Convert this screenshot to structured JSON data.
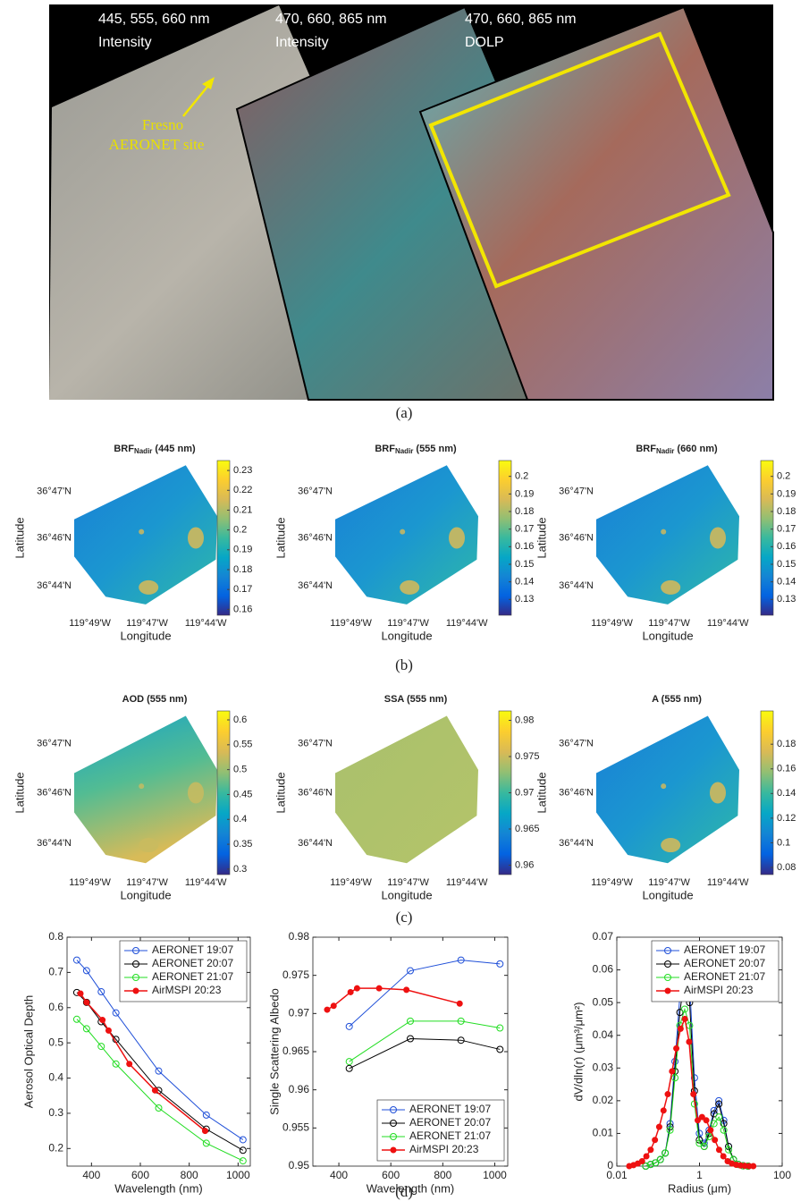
{
  "panel_labels": [
    "(a)",
    "(b)",
    "(c)",
    "(d)"
  ],
  "image_labels": [
    [
      "445, 555, 660 nm",
      "Intensity"
    ],
    [
      "470, 660, 865 nm",
      "Intensity"
    ],
    [
      "470, 660, 865 nm",
      "DOLP"
    ]
  ],
  "site_label": [
    "Fresno",
    "AERONET site"
  ],
  "chart_data": [
    {
      "type": "map",
      "title": "BRF",
      "title_sub": "Nadir",
      "title_suffix": "(445 nm)",
      "xlabel": "Longitude",
      "ylabel": "Latitude",
      "lat_labels": [
        "36°47'N",
        "36°46'N",
        "36°44'N"
      ],
      "lon_labels": [
        "119°49'W",
        "119°47'W",
        "119°44'W"
      ],
      "colormap": "parula",
      "clim": [
        0.157,
        0.235
      ],
      "cticks": [
        0.16,
        0.17,
        0.18,
        0.19,
        0.2,
        0.21,
        0.22,
        0.23
      ]
    },
    {
      "type": "map",
      "title": "BRF",
      "title_sub": "Nadir",
      "title_suffix": "(555 nm)",
      "xlabel": "Longitude",
      "ylabel": "Latitude",
      "lat_labels": [
        "36°47'N",
        "36°46'N",
        "36°44'N"
      ],
      "lon_labels": [
        "119°49'W",
        "119°47'W",
        "119°44'W"
      ],
      "colormap": "parula",
      "clim": [
        0.121,
        0.209
      ],
      "cticks": [
        0.13,
        0.14,
        0.15,
        0.16,
        0.17,
        0.18,
        0.19,
        0.2
      ]
    },
    {
      "type": "map",
      "title": "BRF",
      "title_sub": "Nadir",
      "title_suffix": "(660 nm)",
      "xlabel": "Longitude",
      "ylabel": "Latitude",
      "lat_labels": [
        "36°47'N",
        "36°46'N",
        "36°44'N"
      ],
      "lon_labels": [
        "119°49'W",
        "119°47'W",
        "119°44'W"
      ],
      "colormap": "parula",
      "clim": [
        0.121,
        0.209
      ],
      "cticks": [
        0.13,
        0.14,
        0.15,
        0.16,
        0.17,
        0.18,
        0.19,
        0.2
      ]
    },
    {
      "type": "map",
      "title": "AOD (555 nm)",
      "xlabel": "Longitude",
      "ylabel": "Latitude",
      "lat_labels": [
        "36°47'N",
        "36°46'N",
        "36°44'N"
      ],
      "lon_labels": [
        "119°49'W",
        "119°47'W",
        "119°44'W"
      ],
      "colormap": "parula",
      "clim": [
        0.289,
        0.618
      ],
      "cticks": [
        0.3,
        0.35,
        0.4,
        0.45,
        0.5,
        0.55,
        0.6
      ]
    },
    {
      "type": "map",
      "title": "SSA (555 nm)",
      "xlabel": "Longitude",
      "ylabel": "Latitude",
      "lat_labels": [
        "36°47'N",
        "36°46'N",
        "36°44'N"
      ],
      "lon_labels": [
        "119°49'W",
        "119°47'W",
        "119°44'W"
      ],
      "colormap": "parula",
      "clim": [
        0.9587,
        0.9813
      ],
      "cticks": [
        0.96,
        0.965,
        0.97,
        0.975,
        0.98
      ]
    },
    {
      "type": "map",
      "title": "A (555 nm)",
      "xlabel": "Longitude",
      "ylabel": "Latitude",
      "lat_labels": [
        "36°47'N",
        "36°46'N",
        "36°44'N"
      ],
      "lon_labels": [
        "119°49'W",
        "119°47'W",
        "119°44'W"
      ],
      "colormap": "parula",
      "clim": [
        0.0742,
        0.207
      ],
      "cticks": [
        0.08,
        0.1,
        0.12,
        0.14,
        0.16,
        0.18
      ]
    },
    {
      "type": "line",
      "xlabel": "Wavelength (nm)",
      "ylabel": "Aerosol Optical Depth",
      "xlim": [
        300,
        1050
      ],
      "xticks": [
        400,
        600,
        800,
        1000
      ],
      "ylim": [
        0.15,
        0.8
      ],
      "yticks": [
        0.2,
        0.3,
        0.4,
        0.5,
        0.6,
        0.7,
        0.8
      ],
      "legend": "northeast",
      "series": [
        {
          "name": "AERONET 19:07",
          "color": "#1f4fd8",
          "filled": false,
          "x": [
            340,
            380,
            440,
            500,
            675,
            870,
            1020
          ],
          "values": [
            0.735,
            0.705,
            0.645,
            0.585,
            0.42,
            0.295,
            0.225
          ]
        },
        {
          "name": "AERONET 20:07",
          "color": "#000000",
          "filled": false,
          "x": [
            340,
            380,
            440,
            500,
            675,
            870,
            1020
          ],
          "values": [
            0.643,
            0.615,
            0.56,
            0.51,
            0.365,
            0.255,
            0.195
          ]
        },
        {
          "name": "AERONET 21:07",
          "color": "#22dd22",
          "filled": false,
          "x": [
            340,
            380,
            440,
            500,
            675,
            870,
            1020
          ],
          "values": [
            0.567,
            0.54,
            0.49,
            0.44,
            0.315,
            0.215,
            0.165
          ]
        },
        {
          "name": "AirMSPI 20:23",
          "color": "#ee1111",
          "filled": true,
          "x": [
            355,
            380,
            445,
            470,
            555,
            660,
            865
          ],
          "values": [
            0.64,
            0.615,
            0.565,
            0.535,
            0.44,
            0.365,
            0.25
          ]
        }
      ]
    },
    {
      "type": "line",
      "xlabel": "Wavelength (nm)",
      "ylabel": "Single Scattering Albedo",
      "xlim": [
        300,
        1050
      ],
      "xticks": [
        400,
        600,
        800,
        1000
      ],
      "ylim": [
        0.95,
        0.98
      ],
      "yticks": [
        0.95,
        0.955,
        0.96,
        0.965,
        0.97,
        0.975,
        0.98
      ],
      "legend": "southeast",
      "series": [
        {
          "name": "AERONET 19:07",
          "color": "#1f4fd8",
          "filled": false,
          "x": [
            440,
            675,
            870,
            1020
          ],
          "values": [
            0.9683,
            0.9756,
            0.977,
            0.9765
          ]
        },
        {
          "name": "AERONET 20:07",
          "color": "#000000",
          "filled": false,
          "x": [
            440,
            675,
            870,
            1020
          ],
          "values": [
            0.9628,
            0.9667,
            0.9665,
            0.9653
          ]
        },
        {
          "name": "AERONET 21:07",
          "color": "#22dd22",
          "filled": false,
          "x": [
            440,
            675,
            870,
            1020
          ],
          "values": [
            0.9637,
            0.969,
            0.969,
            0.9681
          ]
        },
        {
          "name": "AirMSPI 20:23",
          "color": "#ee1111",
          "filled": true,
          "x": [
            355,
            380,
            445,
            470,
            555,
            660,
            865
          ],
          "values": [
            0.9705,
            0.971,
            0.9728,
            0.9733,
            0.9733,
            0.9731,
            0.9713
          ]
        }
      ]
    },
    {
      "type": "line",
      "xlabel": "Radius (μm)",
      "ylabel": "dV/dln(r) (μm³/μm²)",
      "xscale": "log",
      "xlim": [
        0.01,
        100
      ],
      "xticks": [
        0.01,
        1,
        100
      ],
      "ylim": [
        0,
        0.07
      ],
      "yticks": [
        0,
        0.01,
        0.02,
        0.03,
        0.04,
        0.05,
        0.06,
        0.07
      ],
      "legend": "northeast",
      "series": [
        {
          "name": "AERONET 19:07",
          "color": "#1f4fd8",
          "filled": false,
          "x": [
            0.05,
            0.0656,
            0.0861,
            0.113,
            0.148,
            0.194,
            0.255,
            0.335,
            0.439,
            0.576,
            0.756,
            0.992,
            1.3,
            1.71,
            2.24,
            2.94,
            3.86,
            5.06,
            6.64,
            8.71,
            11.4,
            15
          ],
          "values": [
            0,
            0.0005,
            0.001,
            0.002,
            0.004,
            0.013,
            0.032,
            0.052,
            0.066,
            0.056,
            0.027,
            0.01,
            0.007,
            0.011,
            0.017,
            0.02,
            0.014,
            0.006,
            0.002,
            0.0005,
            0.0001,
            0
          ]
        },
        {
          "name": "AERONET 20:07",
          "color": "#000000",
          "filled": false,
          "x": [
            0.05,
            0.0656,
            0.0861,
            0.113,
            0.148,
            0.194,
            0.255,
            0.335,
            0.439,
            0.576,
            0.756,
            0.992,
            1.3,
            1.71,
            2.24,
            2.94,
            3.86,
            5.06,
            6.64,
            8.71,
            11.4,
            15
          ],
          "values": [
            0,
            0.0005,
            0.001,
            0.002,
            0.004,
            0.012,
            0.029,
            0.047,
            0.058,
            0.05,
            0.023,
            0.008,
            0.006,
            0.01,
            0.016,
            0.019,
            0.013,
            0.006,
            0.002,
            0.0005,
            0.0001,
            0
          ]
        },
        {
          "name": "AERONET 21:07",
          "color": "#22dd22",
          "filled": false,
          "x": [
            0.05,
            0.0656,
            0.0861,
            0.113,
            0.148,
            0.194,
            0.255,
            0.335,
            0.439,
            0.576,
            0.756,
            0.992,
            1.3,
            1.71,
            2.24,
            2.94,
            3.86,
            5.06,
            6.64,
            8.71,
            11.4,
            15
          ],
          "values": [
            0,
            0.0005,
            0.001,
            0.002,
            0.004,
            0.011,
            0.027,
            0.043,
            0.048,
            0.043,
            0.019,
            0.007,
            0.006,
            0.009,
            0.013,
            0.015,
            0.011,
            0.005,
            0.002,
            0.0005,
            0.0001,
            0
          ]
        },
        {
          "name": "AirMSPI 20:23",
          "color": "#ee1111",
          "filled": true,
          "x": [
            0.02,
            0.0254,
            0.0322,
            0.0409,
            0.0519,
            0.0659,
            0.0836,
            0.106,
            0.135,
            0.171,
            0.217,
            0.275,
            0.349,
            0.443,
            0.562,
            0.713,
            0.905,
            1.15,
            1.46,
            1.85,
            2.35,
            2.98,
            3.78,
            4.8,
            6.09,
            7.73,
            9.81,
            12.4,
            15.8,
            20
          ],
          "values": [
            0,
            0.0003,
            0.0008,
            0.0015,
            0.003,
            0.005,
            0.008,
            0.012,
            0.017,
            0.022,
            0.029,
            0.036,
            0.042,
            0.045,
            0.038,
            0.022,
            0.014,
            0.015,
            0.014,
            0.011,
            0.008,
            0.005,
            0.003,
            0.0015,
            0.0008,
            0.0004,
            0.0002,
            0.0001,
            0,
            0
          ]
        }
      ]
    }
  ]
}
